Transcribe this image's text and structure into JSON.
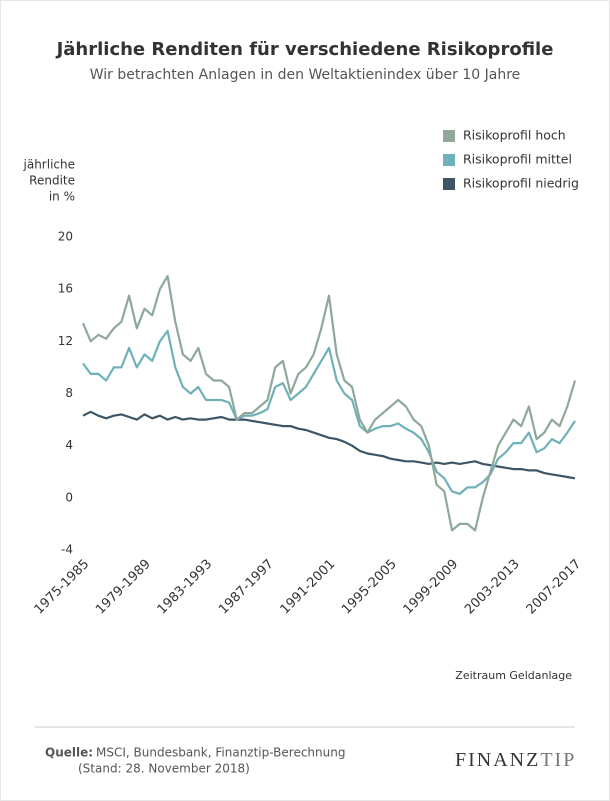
{
  "chart_data": {
    "type": "line",
    "title": "Jährliche Renditen für verschiedene Risikoprofile",
    "subtitle": "Wir betrachten Anlagen in den Weltaktienindex über 10 Jahre",
    "y_label": [
      "jährliche",
      "Rendite",
      "in %"
    ],
    "x_label": "Zeitraum Geldanlage",
    "source_label": "Quelle:",
    "source": "MSCI, Bundesbank, Finanztip-Berechnung",
    "source_date": "(Stand: 28. November 2018)",
    "logo": [
      "FINANZ",
      "TIP"
    ],
    "legend": "top-right",
    "categories": [
      "1975-1985",
      null,
      null,
      null,
      null,
      null,
      null,
      null,
      "1979-1989",
      null,
      null,
      null,
      null,
      null,
      null,
      null,
      "1983-1993",
      null,
      null,
      null,
      null,
      null,
      null,
      null,
      "1987-1997",
      null,
      null,
      null,
      null,
      null,
      null,
      null,
      "1991-2001",
      null,
      null,
      null,
      null,
      null,
      null,
      null,
      "1995-2005",
      null,
      null,
      null,
      null,
      null,
      null,
      null,
      "1999-2009",
      null,
      null,
      null,
      null,
      null,
      null,
      null,
      "2003-2013",
      null,
      null,
      null,
      null,
      null,
      null,
      null,
      "2007-2017"
    ],
    "series": [
      {
        "name": "Risikoprofil hoch",
        "color": "#8fa89a",
        "values": [
          13.4,
          12,
          12.5,
          12.2,
          13,
          13.5,
          15.5,
          13,
          14.5,
          14,
          16,
          17,
          13.5,
          11,
          10.5,
          11.5,
          9.5,
          9,
          9,
          8.5,
          6,
          6.5,
          6.5,
          7,
          7.5,
          10,
          10.5,
          8,
          9.5,
          10,
          11,
          13,
          15.5,
          11,
          9,
          8.5,
          6,
          5,
          6,
          6.5,
          7,
          7.5,
          7,
          6,
          5.5,
          4,
          1,
          0.5,
          -2.5,
          -2,
          -2,
          -2.5,
          0,
          2,
          4,
          5,
          6,
          5.5,
          7,
          4.5,
          5,
          6,
          5.5,
          7,
          9
        ]
      },
      {
        "name": "Risikoprofil mittel",
        "color": "#6fb1b8",
        "values": [
          10.3,
          9.5,
          9.5,
          9,
          10,
          10,
          11.5,
          10,
          11,
          10.5,
          12,
          12.8,
          10,
          8.5,
          8,
          8.5,
          7.5,
          7.5,
          7.5,
          7.3,
          6,
          6.3,
          6.3,
          6.5,
          6.8,
          8.5,
          8.8,
          7.5,
          8,
          8.5,
          9.5,
          10.5,
          11.5,
          9,
          8,
          7.5,
          5.5,
          5,
          5.3,
          5.5,
          5.5,
          5.7,
          5.3,
          5,
          4.5,
          3.5,
          2,
          1.5,
          0.5,
          0.3,
          0.8,
          0.8,
          1.2,
          1.8,
          3,
          3.5,
          4.2,
          4.2,
          5,
          3.5,
          3.8,
          4.5,
          4.2,
          5,
          5.9
        ]
      },
      {
        "name": "Risikoprofil niedrig",
        "color": "#3e5566",
        "values": [
          6.3,
          6.6,
          6.3,
          6.1,
          6.3,
          6.4,
          6.2,
          6.0,
          6.4,
          6.1,
          6.3,
          6.0,
          6.2,
          6.0,
          6.1,
          6.0,
          6.0,
          6.1,
          6.2,
          6.0,
          6.0,
          6.0,
          5.9,
          5.8,
          5.7,
          5.6,
          5.5,
          5.5,
          5.3,
          5.2,
          5.0,
          4.8,
          4.6,
          4.5,
          4.3,
          4.0,
          3.6,
          3.4,
          3.3,
          3.2,
          3.0,
          2.9,
          2.8,
          2.8,
          2.7,
          2.6,
          2.7,
          2.6,
          2.7,
          2.6,
          2.7,
          2.8,
          2.6,
          2.5,
          2.4,
          2.3,
          2.2,
          2.2,
          2.1,
          2.1,
          1.9,
          1.8,
          1.7,
          1.6,
          1.5
        ]
      }
    ],
    "ylim": [
      -4,
      20
    ],
    "yticks": [
      -4,
      0,
      4,
      8,
      12,
      16,
      20
    ]
  }
}
